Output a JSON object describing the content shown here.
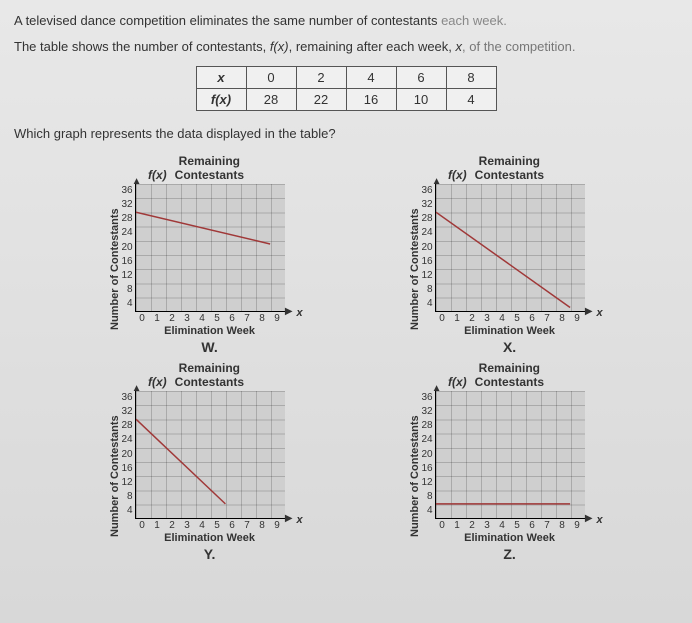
{
  "question": {
    "line1_pre": "A televised dance competition eliminates the same number of contestants ",
    "line1_faded": "each week.",
    "line2_pre": "The table shows the number of contestants, ",
    "line2_fx": "f(x)",
    "line2_mid": ", remaining after each week, ",
    "line2_x": "x",
    "line2_post": ", of the competition.",
    "prompt": "Which graph represents the data displayed in the table?"
  },
  "table": {
    "row1_label": "x",
    "row2_label": "f(x)",
    "x_values": [
      "0",
      "2",
      "4",
      "6",
      "8"
    ],
    "fx_values": [
      "28",
      "22",
      "16",
      "10",
      "4"
    ]
  },
  "chart_common": {
    "title": "Remaining Contestants",
    "ylabel": "Number of Contestants",
    "xlabel": "Elimination Week",
    "fx_label": "f(x)",
    "x_axis_var": "x",
    "y_ticks": [
      "36",
      "32",
      "28",
      "24",
      "20",
      "16",
      "12",
      "8",
      "4"
    ],
    "x_ticks": [
      "0",
      "1",
      "2",
      "3",
      "4",
      "5",
      "6",
      "7",
      "8",
      "9"
    ],
    "grid_color": "#b3b3b3",
    "plot_bg": "#cfcfcf",
    "line_color": "#a03838",
    "line_width": 1.5,
    "xlim": [
      0,
      10
    ],
    "ylim": [
      0,
      36
    ]
  },
  "charts": [
    {
      "id": "W",
      "letter": "W.",
      "points": [
        [
          0,
          28
        ],
        [
          9,
          19
        ]
      ]
    },
    {
      "id": "X",
      "letter": "X.",
      "points": [
        [
          0,
          28
        ],
        [
          9,
          1
        ]
      ]
    },
    {
      "id": "Y",
      "letter": "Y.",
      "points": [
        [
          0,
          28
        ],
        [
          6,
          4
        ]
      ]
    },
    {
      "id": "Z",
      "letter": "Z.",
      "points": [
        [
          0,
          4
        ],
        [
          9,
          4
        ]
      ]
    }
  ]
}
